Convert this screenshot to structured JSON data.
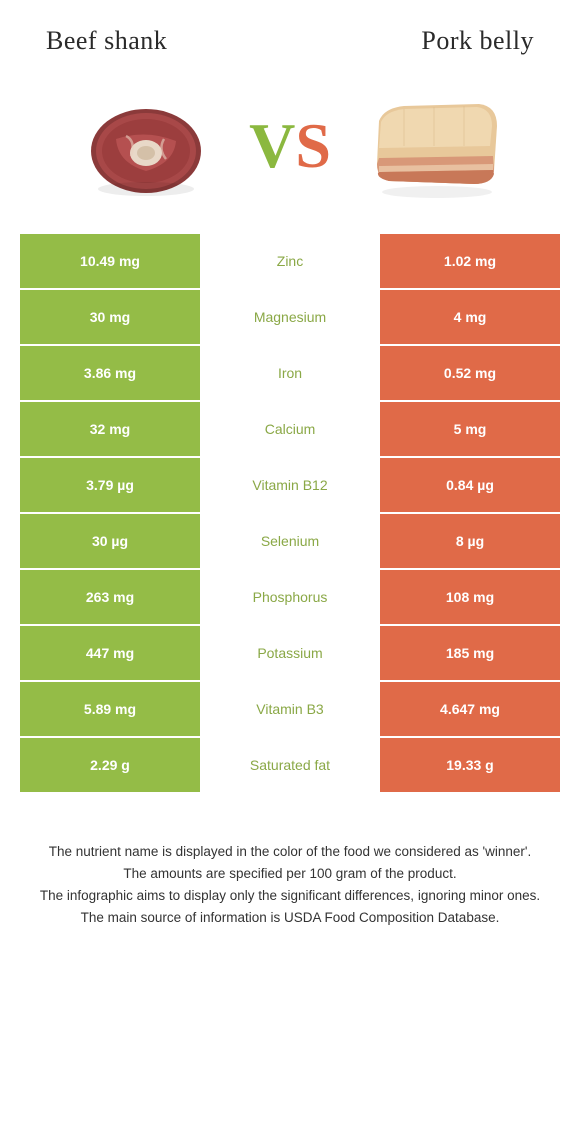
{
  "colors": {
    "left": "#94bc47",
    "right": "#e06a48",
    "left_text": "#8aa846",
    "right_text": "#e06a48"
  },
  "header": {
    "left_title": "Beef shank",
    "right_title": "Pork belly",
    "vs_v": "V",
    "vs_s": "S"
  },
  "rows": [
    {
      "left": "10.49 mg",
      "label": "Zinc",
      "right": "1.02 mg",
      "winner": "left"
    },
    {
      "left": "30 mg",
      "label": "Magnesium",
      "right": "4 mg",
      "winner": "left"
    },
    {
      "left": "3.86 mg",
      "label": "Iron",
      "right": "0.52 mg",
      "winner": "left"
    },
    {
      "left": "32 mg",
      "label": "Calcium",
      "right": "5 mg",
      "winner": "left"
    },
    {
      "left": "3.79 µg",
      "label": "Vitamin B12",
      "right": "0.84 µg",
      "winner": "left"
    },
    {
      "left": "30 µg",
      "label": "Selenium",
      "right": "8 µg",
      "winner": "left"
    },
    {
      "left": "263 mg",
      "label": "Phosphorus",
      "right": "108 mg",
      "winner": "left"
    },
    {
      "left": "447 mg",
      "label": "Potassium",
      "right": "185 mg",
      "winner": "left"
    },
    {
      "left": "5.89 mg",
      "label": "Vitamin B3",
      "right": "4.647 mg",
      "winner": "left"
    },
    {
      "left": "2.29 g",
      "label": "Saturated fat",
      "right": "19.33 g",
      "winner": "left"
    }
  ],
  "footnote": {
    "l1": "The nutrient name is displayed in the color of the food we considered as 'winner'.",
    "l2": "The amounts are specified per 100 gram of the product.",
    "l3": "The infographic aims to display only the significant differences, ignoring minor ones.",
    "l4": "The main source of information is USDA Food Composition Database."
  }
}
